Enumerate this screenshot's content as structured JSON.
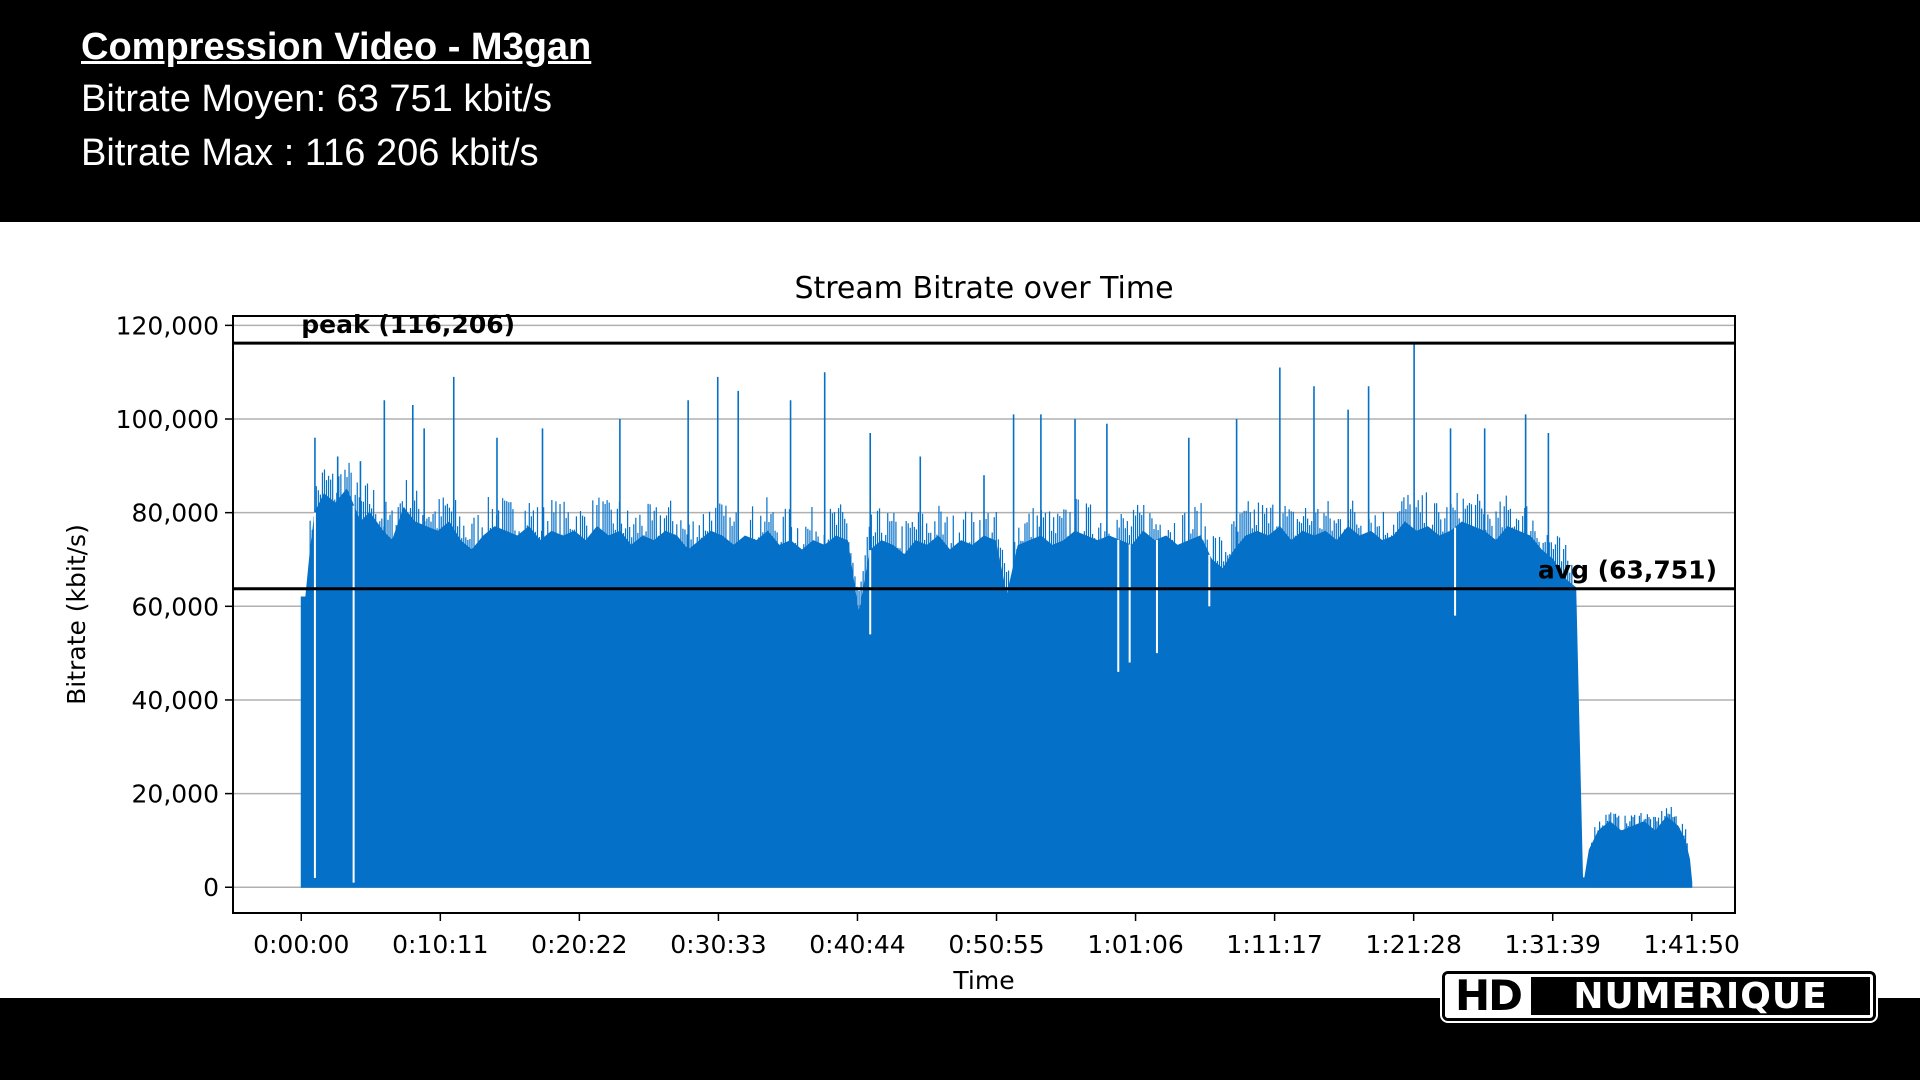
{
  "header": {
    "title": "Compression Video - M3gan",
    "avg_line": "Bitrate Moyen: 63 751 kbit/s",
    "max_line": "Bitrate Max : 116 206 kbit/s"
  },
  "logo": {
    "hd": "HD",
    "name": "NUMERIQUE"
  },
  "colors": {
    "fill": "#0570C8",
    "header_bg": "#000000",
    "grid": "#b0b0b0"
  },
  "chart_data": {
    "type": "area",
    "title": "Stream Bitrate over Time",
    "xlabel": "Time",
    "ylabel": "Bitrate (kbit/s)",
    "ylim": [
      -5500,
      122000
    ],
    "xlim": [
      -300,
      6300
    ],
    "yticks": [
      0,
      20000,
      40000,
      60000,
      80000,
      100000,
      120000
    ],
    "ytick_labels": [
      "0",
      "20,000",
      "40,000",
      "60,000",
      "80,000",
      "100,000",
      "120,000"
    ],
    "xticks": [
      0,
      611,
      1222,
      1833,
      2444,
      3055,
      3666,
      4277,
      4888,
      5499,
      6110
    ],
    "xtick_labels": [
      "0:00:00",
      "0:10:11",
      "0:20:22",
      "0:30:33",
      "0:40:44",
      "0:50:55",
      "1:01:06",
      "1:11:17",
      "1:21:28",
      "1:31:39",
      "1:41:50"
    ],
    "grid": "horizontal",
    "series": [
      {
        "x": [
          0,
          20,
          40,
          60,
          100,
          150,
          200,
          260,
          300,
          360,
          400,
          450,
          500,
          550,
          600,
          650,
          700,
          750,
          800,
          850,
          900,
          950,
          1000,
          1050,
          1100,
          1150,
          1200,
          1250,
          1300,
          1350,
          1400,
          1450,
          1500,
          1550,
          1600,
          1650,
          1700,
          1750,
          1800,
          1850,
          1900,
          1950,
          2000,
          2050,
          2100,
          2150,
          2200,
          2250,
          2300,
          2350,
          2400,
          2450,
          2500,
          2550,
          2600,
          2650,
          2700,
          2750,
          2800,
          2850,
          2900,
          2950,
          3000,
          3050,
          3100,
          3150,
          3200,
          3250,
          3300,
          3350,
          3400,
          3450,
          3500,
          3550,
          3600,
          3650,
          3700,
          3750,
          3800,
          3850,
          3900,
          3950,
          4000,
          4050,
          4100,
          4150,
          4200,
          4250,
          4300,
          4350,
          4400,
          4450,
          4500,
          4550,
          4600,
          4650,
          4700,
          4750,
          4800,
          4850,
          4900,
          4950,
          5000,
          5050,
          5100,
          5150,
          5200,
          5250,
          5300,
          5350,
          5400,
          5450,
          5500,
          5550,
          5600,
          5630,
          5640,
          5660,
          5700,
          5750,
          5800,
          5850,
          5900,
          5950,
          6000,
          6050,
          6080,
          6100,
          6110
        ],
        "y": [
          62000,
          62000,
          72000,
          80000,
          84000,
          82000,
          85000,
          78000,
          80000,
          76000,
          74000,
          81000,
          78000,
          77000,
          76000,
          78000,
          74000,
          72000,
          75000,
          77000,
          76000,
          75000,
          77000,
          74000,
          76000,
          75000,
          76000,
          74000,
          77000,
          75000,
          76000,
          73000,
          75000,
          74000,
          76000,
          75000,
          72000,
          74000,
          76000,
          75000,
          73000,
          75000,
          74000,
          76000,
          73000,
          74000,
          72000,
          74000,
          73000,
          75000,
          74000,
          58000,
          72000,
          74000,
          73000,
          71000,
          74000,
          73000,
          75000,
          72000,
          74000,
          73000,
          75000,
          74000,
          62000,
          73000,
          74000,
          75000,
          73000,
          74000,
          76000,
          75000,
          74000,
          75000,
          74000,
          73000,
          76000,
          74000,
          75000,
          73000,
          74000,
          75000,
          70000,
          68000,
          72000,
          75000,
          76000,
          75000,
          77000,
          74000,
          76000,
          75000,
          76000,
          74000,
          77000,
          75000,
          76000,
          74000,
          75000,
          78000,
          76000,
          77000,
          75000,
          76000,
          78000,
          77000,
          76000,
          74000,
          77000,
          76000,
          75000,
          72000,
          70000,
          66000,
          64000,
          2000,
          2000,
          8000,
          12000,
          14000,
          12000,
          13000,
          14000,
          12000,
          15000,
          13000,
          10000,
          6000,
          1000
        ]
      }
    ],
    "spikes": [
      {
        "x": 60,
        "y": 96000
      },
      {
        "x": 160,
        "y": 92000
      },
      {
        "x": 260,
        "y": 91000
      },
      {
        "x": 365,
        "y": 104000
      },
      {
        "x": 490,
        "y": 103000
      },
      {
        "x": 540,
        "y": 98000
      },
      {
        "x": 670,
        "y": 109000
      },
      {
        "x": 860,
        "y": 96000
      },
      {
        "x": 1060,
        "y": 98000
      },
      {
        "x": 1400,
        "y": 100000
      },
      {
        "x": 1700,
        "y": 104000
      },
      {
        "x": 1830,
        "y": 109000
      },
      {
        "x": 1920,
        "y": 106000
      },
      {
        "x": 2150,
        "y": 104000
      },
      {
        "x": 2300,
        "y": 110000
      },
      {
        "x": 2500,
        "y": 97000
      },
      {
        "x": 2720,
        "y": 92000
      },
      {
        "x": 3000,
        "y": 88000
      },
      {
        "x": 3130,
        "y": 101000
      },
      {
        "x": 3250,
        "y": 101000
      },
      {
        "x": 3400,
        "y": 100000
      },
      {
        "x": 3540,
        "y": 99000
      },
      {
        "x": 3900,
        "y": 96000
      },
      {
        "x": 4110,
        "y": 100000
      },
      {
        "x": 4300,
        "y": 111000
      },
      {
        "x": 4450,
        "y": 107000
      },
      {
        "x": 4600,
        "y": 102000
      },
      {
        "x": 4690,
        "y": 107000
      },
      {
        "x": 4890,
        "y": 116206
      },
      {
        "x": 5050,
        "y": 98000
      },
      {
        "x": 5200,
        "y": 98000
      },
      {
        "x": 5380,
        "y": 101000
      },
      {
        "x": 5480,
        "y": 97000
      }
    ],
    "dips": [
      {
        "x": 60,
        "y": 2000
      },
      {
        "x": 230,
        "y": 1000
      },
      {
        "x": 2500,
        "y": 54000
      },
      {
        "x": 3590,
        "y": 46000
      },
      {
        "x": 3640,
        "y": 48000
      },
      {
        "x": 3760,
        "y": 50000
      },
      {
        "x": 3990,
        "y": 60000
      },
      {
        "x": 5070,
        "y": 58000
      }
    ],
    "annotations": [
      {
        "label": "peak (116,206)",
        "value": 116206
      },
      {
        "label": "avg (63,751)",
        "value": 63751
      }
    ]
  }
}
